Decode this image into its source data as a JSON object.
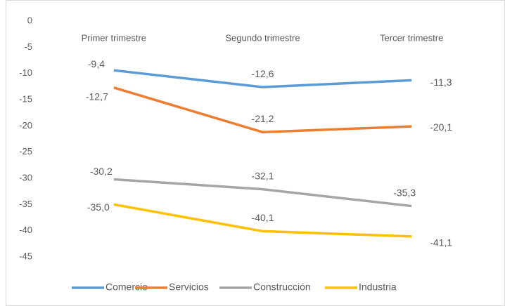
{
  "chart_data": {
    "type": "line",
    "categories": [
      "Primer trimestre",
      "Segundo trimestre",
      "Tercer trimestre"
    ],
    "series": [
      {
        "name": "Comercio",
        "color": "#5b9bd5",
        "values": [
          -9.4,
          -12.6,
          -11.3
        ],
        "value_labels": [
          "-9,4",
          "-12,6",
          "-11,3"
        ]
      },
      {
        "name": "Servicios",
        "color": "#ed7d31",
        "values": [
          -12.7,
          -21.2,
          -20.1
        ],
        "value_labels": [
          "-12,7",
          "-21,2",
          "-20,1"
        ]
      },
      {
        "name": "Construcción",
        "color": "#a5a5a5",
        "values": [
          -30.2,
          -32.1,
          -35.3
        ],
        "value_labels": [
          "-30,2",
          "-32,1",
          "-35,3"
        ]
      },
      {
        "name": "Industria",
        "color": "#ffc000",
        "values": [
          -35.0,
          -40.1,
          -41.1
        ],
        "value_labels": [
          "-35,0",
          "-40,1",
          "-41,1"
        ]
      }
    ],
    "ylim": [
      -45,
      0
    ],
    "yticks": [
      0,
      -5,
      -10,
      -15,
      -20,
      -25,
      -30,
      -35,
      -40,
      -45
    ],
    "grid": false,
    "legend": "bottom"
  }
}
